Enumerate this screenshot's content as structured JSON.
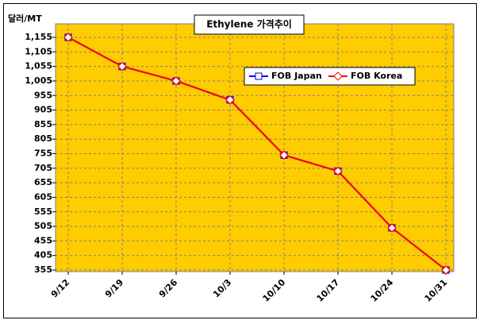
{
  "chart_data": {
    "type": "line",
    "title": "Ethylene 가격추이",
    "y_label": "달러/MT",
    "categories": [
      "9/12",
      "9/19",
      "9/26",
      "10/3",
      "10/10",
      "10/17",
      "10/24",
      "10/31"
    ],
    "series": [
      {
        "name": "FOB Japan",
        "color": "#0000ff",
        "values": [
          1155,
          1055,
          1005,
          940,
          750,
          695,
          500,
          355
        ]
      },
      {
        "name": "FOB Korea",
        "color": "#ff0000",
        "values": [
          1155,
          1055,
          1005,
          940,
          750,
          695,
          500,
          355
        ]
      }
    ],
    "ylim": [
      355,
      1155
    ],
    "yticks": [
      355,
      405,
      455,
      505,
      555,
      605,
      655,
      705,
      755,
      805,
      855,
      905,
      955,
      {
        "value": 1005,
        "label": "1,005"
      },
      {
        "value": 1055,
        "label": "1,055"
      },
      {
        "value": 1105,
        "label": "1,105"
      },
      {
        "value": 1155,
        "label": "1,155"
      }
    ],
    "grid": true,
    "plot_color": "#ffcc00"
  }
}
